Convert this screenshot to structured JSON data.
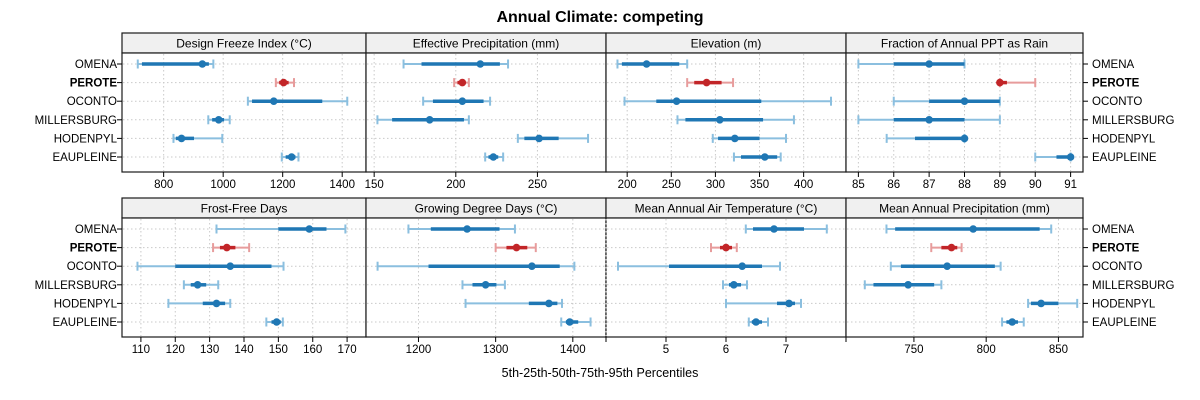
{
  "title": "Annual Climate: competing",
  "caption": "5th-25th-50th-75th-95th Percentiles",
  "sites": [
    "OMENA",
    "PEROTE",
    "OCONTO",
    "MILLERSBURG",
    "HODENPYL",
    "EAUPLEINE"
  ],
  "highlight_site": "PEROTE",
  "colors": {
    "blue_dark": "#1f77b4",
    "blue_light": "#8bbfdf",
    "red_dark": "#c22528",
    "red_light": "#e79c9c",
    "strip_bg": "#f0f0f0",
    "panel_border": "#1a1a1a",
    "grid": "#c9c9c9"
  },
  "chart_data": [
    {
      "type": "dotplot-interval",
      "panel": "Design Freeze Index (°C)",
      "row": 0,
      "col": 0,
      "xlim": [
        660,
        1480
      ],
      "ticks": [
        800,
        1000,
        1200,
        1400
      ],
      "minor_ticks": [],
      "percentile_labels": [
        "p5",
        "p25",
        "p50",
        "p75",
        "p95"
      ],
      "values": {
        "OMENA": [
          713,
          727,
          930,
          952,
          967
        ],
        "PEROTE": [
          1177,
          1188,
          1203,
          1220,
          1238
        ],
        "OCONTO": [
          1083,
          1097,
          1170,
          1333,
          1417
        ],
        "MILLERSBURG": [
          950,
          963,
          985,
          1003,
          1022
        ],
        "HODENPYL": [
          833,
          841,
          860,
          902,
          997
        ],
        "EAUPLEINE": [
          1197,
          1210,
          1230,
          1243,
          1253
        ]
      }
    },
    {
      "type": "dotplot-interval",
      "panel": "Effective Precipitation (mm)",
      "row": 0,
      "col": 1,
      "xlim": [
        145,
        292
      ],
      "ticks": [
        150,
        200,
        250
      ],
      "minor_ticks": [],
      "values": {
        "OMENA": [
          168,
          179,
          215,
          227,
          232
        ],
        "PEROTE": [
          199,
          201,
          204,
          206,
          208
        ],
        "OCONTO": [
          180,
          186,
          204,
          217,
          221
        ],
        "MILLERSBURG": [
          152,
          161,
          184,
          205,
          208
        ],
        "HODENPYL": [
          238,
          242,
          251,
          263,
          281
        ],
        "EAUPLEINE": [
          218,
          220,
          223,
          226,
          229
        ]
      }
    },
    {
      "type": "dotplot-interval",
      "panel": "Elevation (m)",
      "row": 0,
      "col": 2,
      "xlim": [
        176,
        448
      ],
      "ticks": [
        200,
        250,
        300,
        350,
        400
      ],
      "minor_ticks": [],
      "values": {
        "OMENA": [
          189,
          194,
          222,
          259,
          268
        ],
        "PEROTE": [
          268,
          276,
          290,
          307,
          320
        ],
        "OCONTO": [
          197,
          233,
          256,
          352,
          431
        ],
        "MILLERSBURG": [
          257,
          266,
          305,
          354,
          389
        ],
        "HODENPYL": [
          297,
          303,
          322,
          350,
          380
        ],
        "EAUPLEINE": [
          321,
          329,
          356,
          370,
          374
        ]
      }
    },
    {
      "type": "dotplot-interval",
      "panel": "Fraction of Annual PPT as Rain",
      "row": 0,
      "col": 3,
      "xlim": [
        84.65,
        91.35
      ],
      "ticks": [
        85,
        86,
        87,
        88,
        89,
        90,
        91
      ],
      "minor_ticks": [],
      "values": {
        "OMENA": [
          85,
          86,
          87,
          88,
          88
        ],
        "PEROTE": [
          89,
          89,
          89,
          89.2,
          90
        ],
        "OCONTO": [
          86,
          87,
          88,
          89,
          89
        ],
        "MILLERSBURG": [
          85,
          86,
          87,
          88,
          89
        ],
        "HODENPYL": [
          85.8,
          86.6,
          88,
          88,
          88
        ],
        "EAUPLEINE": [
          90,
          90.6,
          91,
          91,
          91
        ]
      }
    },
    {
      "type": "dotplot-interval",
      "panel": "Frost-Free Days",
      "row": 1,
      "col": 0,
      "xlim": [
        104.5,
        175.5
      ],
      "ticks": [
        110,
        120,
        130,
        140,
        150,
        160,
        170
      ],
      "minor_ticks": [],
      "values": {
        "OMENA": [
          132,
          150,
          159,
          164,
          169.5
        ],
        "PEROTE": [
          131,
          133,
          135,
          137.5,
          141.5
        ],
        "OCONTO": [
          109,
          120,
          136,
          148,
          151.5
        ],
        "MILLERSBURG": [
          122.5,
          124.5,
          126.5,
          129,
          132.5
        ],
        "HODENPYL": [
          118,
          128,
          132,
          134.5,
          136
        ],
        "EAUPLEINE": [
          146.5,
          148,
          149.5,
          150.7,
          151.3
        ]
      }
    },
    {
      "type": "dotplot-interval",
      "panel": "Growing Degree Days (°C)",
      "row": 1,
      "col": 1,
      "xlim": [
        1132,
        1443
      ],
      "ticks": [
        1200,
        1300,
        1400
      ],
      "minor_ticks": [],
      "values": {
        "OMENA": [
          1187,
          1216,
          1263,
          1305,
          1325
        ],
        "PEROTE": [
          1300,
          1314,
          1327,
          1341,
          1352
        ],
        "OCONTO": [
          1147,
          1213,
          1347,
          1383,
          1402
        ],
        "MILLERSBURG": [
          1257,
          1270,
          1287,
          1301,
          1312
        ],
        "HODENPYL": [
          1261,
          1343,
          1369,
          1380,
          1386
        ],
        "EAUPLEINE": [
          1385,
          1391,
          1396,
          1407,
          1423
        ]
      }
    },
    {
      "type": "dotplot-interval",
      "panel": "Mean Annual Air Temperature (°C)",
      "row": 1,
      "col": 2,
      "xlim": [
        4.0,
        8.0
      ],
      "ticks": [
        5,
        6,
        7
      ],
      "minor_ticks": [
        4,
        8
      ],
      "values": {
        "OMENA": [
          6.33,
          6.45,
          6.8,
          7.3,
          7.68
        ],
        "PEROTE": [
          5.75,
          5.9,
          6.0,
          6.1,
          6.18
        ],
        "OCONTO": [
          4.2,
          5.05,
          6.27,
          6.6,
          6.9
        ],
        "MILLERSBURG": [
          5.95,
          6.05,
          6.13,
          6.25,
          6.35
        ],
        "HODENPYL": [
          6.0,
          6.85,
          7.05,
          7.15,
          7.25
        ],
        "EAUPLEINE": [
          6.38,
          6.43,
          6.5,
          6.6,
          6.7
        ]
      }
    },
    {
      "type": "dotplot-interval",
      "panel": "Mean Annual Precipitation (mm)",
      "row": 1,
      "col": 3,
      "xlim": [
        703,
        867
      ],
      "ticks": [
        750,
        800,
        850
      ],
      "minor_ticks": [],
      "values": {
        "OMENA": [
          731,
          737,
          791,
          837,
          845
        ],
        "PEROTE": [
          762,
          769,
          776,
          780,
          783
        ],
        "OCONTO": [
          734,
          741,
          773,
          806,
          810
        ],
        "MILLERSBURG": [
          716,
          722,
          746,
          764,
          769
        ],
        "HODENPYL": [
          829,
          831,
          838,
          850,
          863
        ],
        "EAUPLEINE": [
          811,
          814,
          818,
          822,
          826
        ]
      }
    }
  ]
}
